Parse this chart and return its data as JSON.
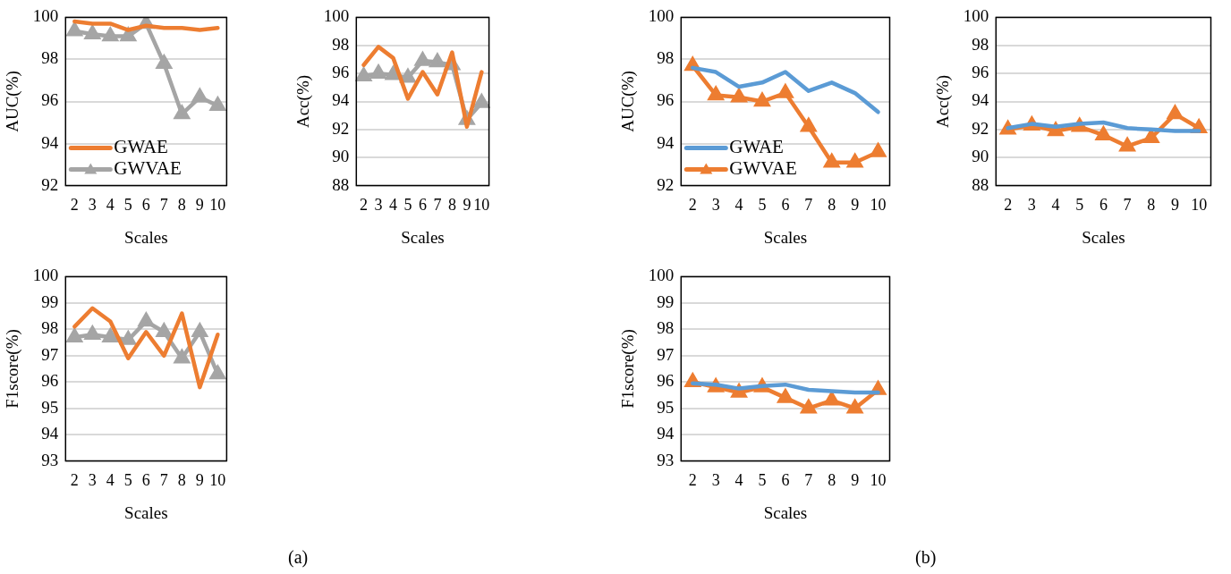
{
  "chart_data": [
    {
      "type": "line",
      "ylabel": "AUC(%)",
      "xlabel": "Scales",
      "categories": [
        "2",
        "3",
        "4",
        "5",
        "6",
        "7",
        "8",
        "9",
        "10"
      ],
      "ylim": [
        92,
        100
      ],
      "yticks": [
        92,
        94,
        96,
        98,
        100
      ],
      "grid": "y",
      "legend": "bottom left",
      "series": [
        {
          "name": "GWAE",
          "color": "#ed7d31",
          "marker": "none",
          "values": [
            99.8,
            99.7,
            99.7,
            99.4,
            99.6,
            99.5,
            99.5,
            99.4,
            99.5
          ]
        },
        {
          "name": "GWVAE",
          "color": "#a5a5a5",
          "marker": "triangle",
          "values": [
            99.35,
            99.2,
            99.1,
            99.1,
            99.7,
            97.8,
            95.4,
            96.2,
            95.8
          ]
        }
      ]
    },
    {
      "type": "line",
      "ylabel": "Acc(%)",
      "xlabel": "Scales",
      "categories": [
        "2",
        "3",
        "4",
        "5",
        "6",
        "7",
        "8",
        "9",
        "10"
      ],
      "ylim": [
        88,
        100
      ],
      "yticks": [
        88,
        90,
        92,
        94,
        96,
        98,
        100
      ],
      "grid": "y",
      "series": [
        {
          "color": "#ed7d31",
          "marker": "none",
          "values": [
            96.6,
            97.9,
            97.1,
            94.2,
            96.1,
            94.5,
            97.5,
            92.2,
            96.1
          ]
        },
        {
          "color": "#a5a5a5",
          "marker": "triangle",
          "values": [
            95.8,
            96.0,
            95.9,
            95.7,
            96.9,
            96.8,
            96.6,
            92.7,
            93.9
          ]
        }
      ]
    },
    {
      "type": "line",
      "ylabel": "AUC(%)",
      "xlabel": "Scales",
      "categories": [
        "2",
        "3",
        "4",
        "5",
        "6",
        "7",
        "8",
        "9",
        "10"
      ],
      "ylim": [
        92,
        100
      ],
      "yticks": [
        92,
        94,
        96,
        98,
        100
      ],
      "grid": "y",
      "legend": "bottom left",
      "series": [
        {
          "name": "GWAE",
          "color": "#5b9bd5",
          "marker": "none",
          "values": [
            97.6,
            97.4,
            96.7,
            96.9,
            97.4,
            96.5,
            96.9,
            96.4,
            95.5
          ]
        },
        {
          "name": "GWVAE",
          "color": "#ed7d31",
          "marker": "triangle",
          "values": [
            97.7,
            96.3,
            96.2,
            96.0,
            96.4,
            94.8,
            93.1,
            93.1,
            93.6
          ]
        }
      ]
    },
    {
      "type": "line",
      "ylabel": "Acc(%)",
      "xlabel": "Scales",
      "categories": [
        "2",
        "3",
        "4",
        "5",
        "6",
        "7",
        "8",
        "9",
        "10"
      ],
      "ylim": [
        88,
        100
      ],
      "yticks": [
        88,
        90,
        92,
        94,
        96,
        98,
        100
      ],
      "grid": "y",
      "series": [
        {
          "color": "#5b9bd5",
          "marker": "none",
          "values": [
            92.1,
            92.4,
            92.2,
            92.4,
            92.5,
            92.1,
            92.0,
            91.9,
            91.9
          ]
        },
        {
          "color": "#ed7d31",
          "marker": "triangle",
          "values": [
            92.0,
            92.3,
            91.9,
            92.2,
            91.6,
            90.8,
            91.4,
            93.1,
            92.1
          ]
        }
      ]
    },
    {
      "type": "line",
      "ylabel": "F1score(%)",
      "xlabel": "Scales",
      "categories": [
        "2",
        "3",
        "4",
        "5",
        "6",
        "7",
        "8",
        "9",
        "10"
      ],
      "ylim": [
        93,
        100
      ],
      "yticks": [
        93,
        94,
        95,
        96,
        97,
        98,
        99,
        100
      ],
      "grid": "y",
      "annotations": [
        "(a)"
      ],
      "series": [
        {
          "color": "#ed7d31",
          "marker": "none",
          "values": [
            98.1,
            98.8,
            98.3,
            96.9,
            97.9,
            97.0,
            98.6,
            95.8,
            97.8
          ]
        },
        {
          "color": "#a5a5a5",
          "marker": "triangle",
          "values": [
            97.7,
            97.8,
            97.7,
            97.6,
            98.3,
            97.9,
            96.9,
            97.9,
            96.3
          ]
        }
      ]
    },
    {
      "type": "line",
      "ylabel": "F1score(%)",
      "xlabel": "Scales",
      "categories": [
        "2",
        "3",
        "4",
        "5",
        "6",
        "7",
        "8",
        "9",
        "10"
      ],
      "ylim": [
        93,
        100
      ],
      "yticks": [
        93,
        94,
        95,
        96,
        97,
        98,
        99,
        100
      ],
      "grid": "y",
      "annotations": [
        "(b)"
      ],
      "series": [
        {
          "color": "#5b9bd5",
          "marker": "none",
          "values": [
            95.95,
            95.9,
            95.75,
            95.85,
            95.9,
            95.7,
            95.65,
            95.6,
            95.6
          ]
        },
        {
          "color": "#ed7d31",
          "marker": "triangle",
          "values": [
            96.0,
            95.8,
            95.6,
            95.8,
            95.4,
            95.0,
            95.3,
            95.0,
            95.7
          ]
        }
      ]
    }
  ]
}
